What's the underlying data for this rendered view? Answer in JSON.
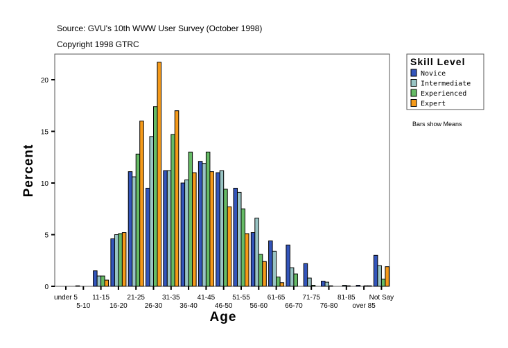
{
  "source": "Source: GVU's 10th WWW User Survey (October 1998)",
  "copyright": "Copyright 1998 GTRC",
  "note": "Bars show Means",
  "chart_data": {
    "type": "bar",
    "xlabel": "Age",
    "ylabel": "Percent",
    "ylim": [
      0,
      22.5
    ],
    "yticks": [
      0,
      5,
      10,
      15,
      20
    ],
    "grid": false,
    "legend_title": "Skill Level",
    "legend_position": "right",
    "categories": [
      "under 5",
      "5-10",
      "11-15",
      "16-20",
      "21-25",
      "26-30",
      "31-35",
      "36-40",
      "41-45",
      "46-50",
      "51-55",
      "56-60",
      "61-65",
      "66-70",
      "71-75",
      "76-80",
      "81-85",
      "over 85",
      "Not Say"
    ],
    "series": [
      {
        "name": "Novice",
        "color": "#3355bb",
        "values": [
          0,
          0.05,
          1.5,
          4.6,
          11.1,
          9.5,
          11.2,
          10.0,
          12.1,
          11.0,
          9.5,
          5.2,
          4.4,
          4.0,
          2.2,
          0.5,
          0,
          0.1,
          3.0
        ]
      },
      {
        "name": "Intermediate",
        "color": "#99c4c4",
        "values": [
          0,
          0,
          1.0,
          5.0,
          10.6,
          14.5,
          11.2,
          10.3,
          11.9,
          11.2,
          9.1,
          6.6,
          3.4,
          1.8,
          0.8,
          0.4,
          0.1,
          0,
          2.0
        ]
      },
      {
        "name": "Experienced",
        "color": "#66bb66",
        "values": [
          0,
          0,
          1.0,
          5.1,
          12.8,
          17.4,
          14.7,
          13.0,
          13.0,
          9.4,
          7.5,
          3.1,
          0.9,
          1.2,
          0.1,
          0.05,
          0.05,
          0.05,
          0.7
        ]
      },
      {
        "name": "Expert",
        "color": "#f59a1a",
        "values": [
          0,
          0,
          0.6,
          5.2,
          16.0,
          21.7,
          17.0,
          11.0,
          11.1,
          7.7,
          5.1,
          2.4,
          0.35,
          0,
          0,
          0,
          0,
          0.05,
          1.9
        ]
      }
    ]
  }
}
